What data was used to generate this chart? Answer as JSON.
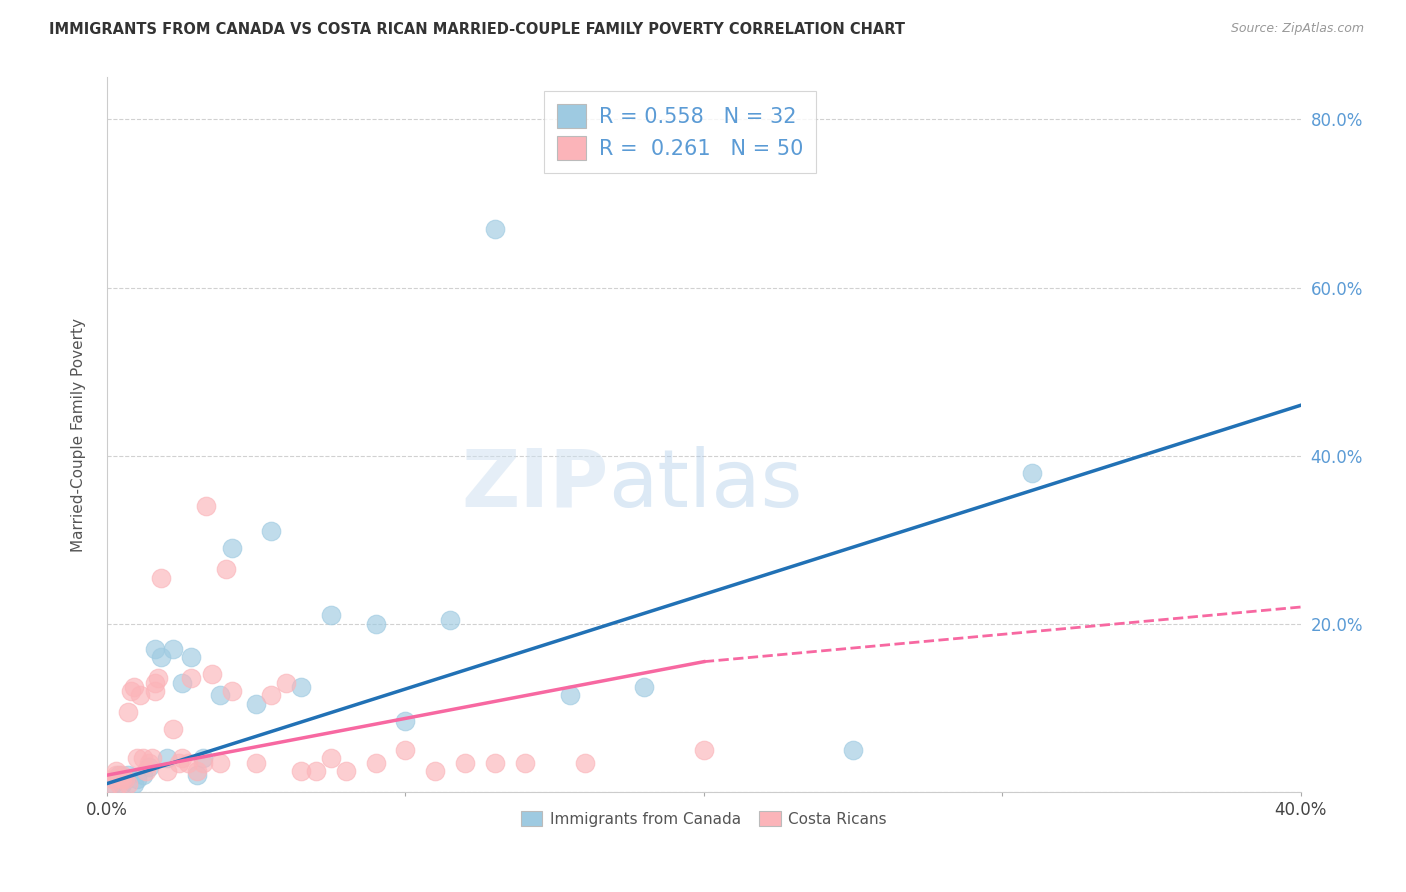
{
  "title": "IMMIGRANTS FROM CANADA VS COSTA RICAN MARRIED-COUPLE FAMILY POVERTY CORRELATION CHART",
  "source": "Source: ZipAtlas.com",
  "ylabel": "Married-Couple Family Poverty",
  "xlim": [
    0.0,
    0.4
  ],
  "ylim": [
    0.0,
    0.85
  ],
  "R_blue": 0.558,
  "N_blue": 32,
  "R_pink": 0.261,
  "N_pink": 50,
  "blue_scatter_color": "#9ecae1",
  "pink_scatter_color": "#fbb4b9",
  "blue_line_color": "#2171b5",
  "pink_line_color": "#f768a1",
  "legend_label_blue": "Immigrants from Canada",
  "legend_label_pink": "Costa Ricans",
  "blue_scatter_x": [
    0.002,
    0.003,
    0.004,
    0.005,
    0.006,
    0.007,
    0.009,
    0.01,
    0.012,
    0.014,
    0.016,
    0.018,
    0.02,
    0.022,
    0.025,
    0.028,
    0.03,
    0.032,
    0.038,
    0.042,
    0.05,
    0.055,
    0.065,
    0.075,
    0.09,
    0.1,
    0.115,
    0.13,
    0.155,
    0.18,
    0.25,
    0.31
  ],
  "blue_scatter_y": [
    0.01,
    0.015,
    0.02,
    0.01,
    0.015,
    0.02,
    0.01,
    0.015,
    0.02,
    0.03,
    0.17,
    0.16,
    0.04,
    0.17,
    0.13,
    0.16,
    0.02,
    0.04,
    0.115,
    0.29,
    0.105,
    0.31,
    0.125,
    0.21,
    0.2,
    0.085,
    0.205,
    0.67,
    0.115,
    0.125,
    0.05,
    0.38
  ],
  "pink_scatter_x": [
    0.001,
    0.002,
    0.003,
    0.003,
    0.004,
    0.005,
    0.005,
    0.006,
    0.007,
    0.007,
    0.008,
    0.009,
    0.01,
    0.011,
    0.012,
    0.013,
    0.014,
    0.015,
    0.016,
    0.016,
    0.017,
    0.018,
    0.02,
    0.022,
    0.024,
    0.025,
    0.027,
    0.028,
    0.03,
    0.032,
    0.033,
    0.035,
    0.038,
    0.04,
    0.042,
    0.05,
    0.055,
    0.06,
    0.065,
    0.07,
    0.075,
    0.08,
    0.09,
    0.1,
    0.11,
    0.12,
    0.13,
    0.14,
    0.16,
    0.2
  ],
  "pink_scatter_y": [
    0.01,
    0.015,
    0.02,
    0.025,
    0.01,
    0.015,
    0.02,
    0.015,
    0.01,
    0.095,
    0.12,
    0.125,
    0.04,
    0.115,
    0.04,
    0.025,
    0.035,
    0.04,
    0.12,
    0.13,
    0.135,
    0.255,
    0.025,
    0.075,
    0.035,
    0.04,
    0.035,
    0.135,
    0.025,
    0.035,
    0.34,
    0.14,
    0.035,
    0.265,
    0.12,
    0.035,
    0.115,
    0.13,
    0.025,
    0.025,
    0.04,
    0.025,
    0.035,
    0.05,
    0.025,
    0.035,
    0.035,
    0.035,
    0.035,
    0.05
  ],
  "blue_line_x0": 0.0,
  "blue_line_y0": 0.01,
  "blue_line_x1": 0.4,
  "blue_line_y1": 0.46,
  "pink_line_x0": 0.0,
  "pink_line_y0": 0.02,
  "pink_line_x1_solid": 0.2,
  "pink_line_y1_solid": 0.155,
  "pink_line_x1_dash": 0.4,
  "pink_line_y1_dash": 0.22,
  "watermark_zip": "ZIP",
  "watermark_atlas": "atlas",
  "background_color": "#ffffff",
  "grid_color": "#cccccc"
}
